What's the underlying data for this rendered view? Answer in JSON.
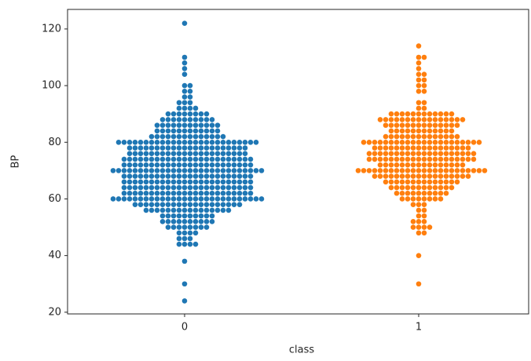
{
  "chart_data": {
    "type": "swarm",
    "x_label": "class",
    "y_label": "BP",
    "categories": [
      "0",
      "1"
    ],
    "colors": [
      "#1f77b4",
      "#ff7f0e"
    ],
    "values": [
      [
        24,
        30,
        38,
        44,
        44,
        44,
        44,
        46,
        46,
        46,
        48,
        48,
        48,
        48,
        50,
        50,
        50,
        50,
        50,
        50,
        50,
        50,
        52,
        52,
        52,
        52,
        52,
        52,
        52,
        52,
        52,
        52,
        54,
        54,
        54,
        54,
        54,
        54,
        54,
        54,
        54,
        54,
        56,
        56,
        56,
        56,
        56,
        56,
        56,
        56,
        56,
        56,
        56,
        56,
        56,
        56,
        56,
        56,
        58,
        58,
        58,
        58,
        58,
        58,
        58,
        58,
        58,
        58,
        58,
        58,
        58,
        58,
        58,
        58,
        58,
        58,
        58,
        58,
        60,
        60,
        60,
        60,
        60,
        60,
        60,
        60,
        60,
        60,
        60,
        60,
        60,
        60,
        60,
        60,
        60,
        60,
        60,
        60,
        60,
        60,
        60,
        60,
        60,
        60,
        60,
        60,
        62,
        62,
        62,
        62,
        62,
        62,
        62,
        62,
        62,
        62,
        62,
        62,
        62,
        62,
        62,
        62,
        62,
        62,
        62,
        62,
        62,
        62,
        62,
        62,
        64,
        64,
        64,
        64,
        64,
        64,
        64,
        64,
        64,
        64,
        64,
        64,
        64,
        64,
        64,
        64,
        64,
        64,
        64,
        64,
        64,
        64,
        64,
        64,
        66,
        66,
        66,
        66,
        66,
        66,
        66,
        66,
        66,
        66,
        66,
        66,
        66,
        66,
        66,
        66,
        66,
        66,
        66,
        66,
        66,
        66,
        66,
        66,
        68,
        68,
        68,
        68,
        68,
        68,
        68,
        68,
        68,
        68,
        68,
        68,
        68,
        68,
        68,
        68,
        68,
        68,
        68,
        68,
        68,
        68,
        68,
        68,
        70,
        70,
        70,
        70,
        70,
        70,
        70,
        70,
        70,
        70,
        70,
        70,
        70,
        70,
        70,
        70,
        70,
        70,
        70,
        70,
        70,
        70,
        70,
        70,
        70,
        70,
        70,
        70,
        72,
        72,
        72,
        72,
        72,
        72,
        72,
        72,
        72,
        72,
        72,
        72,
        72,
        72,
        72,
        72,
        72,
        72,
        72,
        72,
        72,
        72,
        72,
        72,
        74,
        74,
        74,
        74,
        74,
        74,
        74,
        74,
        74,
        74,
        74,
        74,
        74,
        74,
        74,
        74,
        74,
        74,
        74,
        74,
        74,
        74,
        74,
        74,
        76,
        76,
        76,
        76,
        76,
        76,
        76,
        76,
        76,
        76,
        76,
        76,
        76,
        76,
        76,
        76,
        76,
        76,
        76,
        76,
        76,
        76,
        78,
        78,
        78,
        78,
        78,
        78,
        78,
        78,
        78,
        78,
        78,
        78,
        78,
        78,
        78,
        78,
        78,
        78,
        78,
        78,
        78,
        78,
        80,
        80,
        80,
        80,
        80,
        80,
        80,
        80,
        80,
        80,
        80,
        80,
        80,
        80,
        80,
        80,
        80,
        80,
        80,
        80,
        80,
        80,
        80,
        80,
        80,
        80,
        82,
        82,
        82,
        82,
        82,
        82,
        82,
        82,
        82,
        82,
        82,
        82,
        82,
        82,
        84,
        84,
        84,
        84,
        84,
        84,
        84,
        84,
        84,
        84,
        84,
        84,
        86,
        86,
        86,
        86,
        86,
        86,
        86,
        86,
        86,
        86,
        86,
        86,
        88,
        88,
        88,
        88,
        88,
        88,
        88,
        88,
        88,
        88,
        90,
        90,
        90,
        90,
        90,
        90,
        90,
        90,
        92,
        92,
        92,
        92,
        94,
        94,
        94,
        96,
        96,
        98,
        98,
        100,
        100,
        104,
        106,
        108,
        110,
        122
      ],
      [
        30,
        40,
        48,
        48,
        50,
        50,
        50,
        50,
        52,
        52,
        52,
        54,
        54,
        56,
        56,
        58,
        58,
        58,
        60,
        60,
        60,
        60,
        60,
        60,
        60,
        60,
        62,
        62,
        62,
        62,
        62,
        62,
        62,
        62,
        62,
        62,
        64,
        64,
        64,
        64,
        64,
        64,
        64,
        64,
        64,
        64,
        64,
        64,
        66,
        66,
        66,
        66,
        66,
        66,
        66,
        66,
        66,
        66,
        66,
        66,
        66,
        66,
        68,
        68,
        68,
        68,
        68,
        68,
        68,
        68,
        68,
        68,
        68,
        68,
        68,
        68,
        68,
        68,
        68,
        68,
        70,
        70,
        70,
        70,
        70,
        70,
        70,
        70,
        70,
        70,
        70,
        70,
        70,
        70,
        70,
        70,
        70,
        70,
        70,
        70,
        70,
        70,
        70,
        70,
        72,
        72,
        72,
        72,
        72,
        72,
        72,
        72,
        72,
        72,
        72,
        72,
        72,
        72,
        72,
        72,
        74,
        74,
        74,
        74,
        74,
        74,
        74,
        74,
        74,
        74,
        74,
        74,
        74,
        74,
        74,
        74,
        74,
        74,
        74,
        74,
        76,
        76,
        76,
        76,
        76,
        76,
        76,
        76,
        76,
        76,
        76,
        76,
        76,
        76,
        76,
        76,
        76,
        76,
        76,
        76,
        78,
        78,
        78,
        78,
        78,
        78,
        78,
        78,
        78,
        78,
        78,
        78,
        78,
        78,
        78,
        78,
        78,
        78,
        80,
        80,
        80,
        80,
        80,
        80,
        80,
        80,
        80,
        80,
        80,
        80,
        80,
        80,
        80,
        80,
        80,
        80,
        80,
        80,
        80,
        80,
        82,
        82,
        82,
        82,
        82,
        82,
        82,
        82,
        82,
        82,
        82,
        82,
        82,
        82,
        84,
        84,
        84,
        84,
        84,
        84,
        84,
        84,
        84,
        84,
        84,
        84,
        86,
        86,
        86,
        86,
        86,
        86,
        86,
        86,
        86,
        86,
        86,
        86,
        86,
        86,
        88,
        88,
        88,
        88,
        88,
        88,
        88,
        88,
        88,
        88,
        88,
        88,
        88,
        88,
        88,
        88,
        90,
        90,
        90,
        90,
        90,
        90,
        90,
        90,
        90,
        90,
        90,
        90,
        92,
        92,
        94,
        94,
        98,
        98,
        100,
        100,
        102,
        102,
        104,
        104,
        106,
        108,
        110,
        110,
        114
      ]
    ],
    "ylim": [
      19.4,
      126.9
    ],
    "yticks": [
      20,
      40,
      60,
      80,
      100,
      120
    ]
  }
}
